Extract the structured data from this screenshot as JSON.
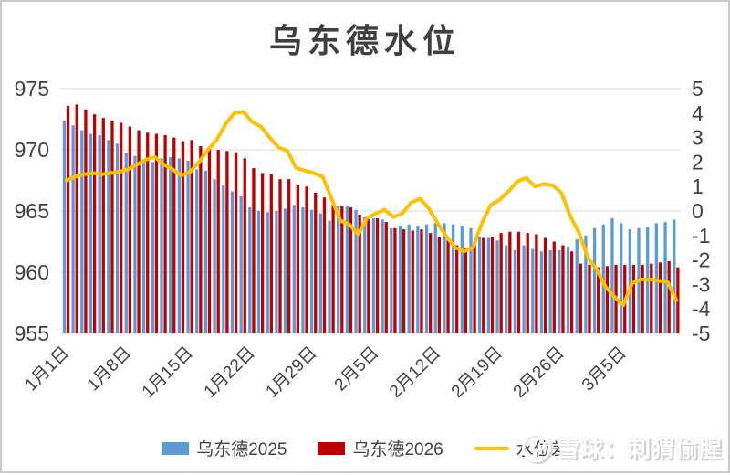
{
  "title": "乌东德水位",
  "legend": [
    {
      "label": "乌东德2025",
      "color": "#5B9BD5",
      "type": "bar"
    },
    {
      "label": "乌东德2026",
      "color": "#C00000",
      "type": "bar"
    },
    {
      "label": "水位差",
      "color": "#FFC000",
      "type": "line"
    }
  ],
  "watermark": {
    "text": "雪球：刺猬偷腥"
  },
  "colors": {
    "bar2025": "#5B9BD5",
    "bar2026": "#C00000",
    "diff_line": "#FFC000",
    "grid": "#D9D9D9",
    "axis_text": "#404040"
  },
  "chart_data": {
    "type": "bar",
    "title": "乌东德水位",
    "grid": "horizontal",
    "legend_position": "bottom",
    "left_axis": {
      "min": 955,
      "max": 975,
      "ticks": [
        975,
        970,
        965,
        960,
        955
      ]
    },
    "right_axis": {
      "min": -5,
      "max": 5,
      "ticks": [
        5,
        4,
        3,
        2,
        1,
        0,
        -1,
        -2,
        -3,
        -4,
        -5
      ]
    },
    "x_tick_interval_days": 7,
    "x_tick_labels": [
      "1月1日",
      "1月8日",
      "1月15日",
      "1月22日",
      "1月29日",
      "2月5日",
      "2月12日",
      "2月19日",
      "2月26日",
      "3月5日"
    ],
    "categories": [
      "1月1日",
      "1月2日",
      "1月3日",
      "1月4日",
      "1月5日",
      "1月6日",
      "1月7日",
      "1月8日",
      "1月9日",
      "1月10日",
      "1月11日",
      "1月12日",
      "1月13日",
      "1月14日",
      "1月15日",
      "1月16日",
      "1月17日",
      "1月18日",
      "1月19日",
      "1月20日",
      "1月21日",
      "1月22日",
      "1月23日",
      "1月24日",
      "1月25日",
      "1月26日",
      "1月27日",
      "1月28日",
      "1月29日",
      "1月30日",
      "1月31日",
      "2月1日",
      "2月2日",
      "2月3日",
      "2月4日",
      "2月5日",
      "2月6日",
      "2月7日",
      "2月8日",
      "2月9日",
      "2月10日",
      "2月11日",
      "2月12日",
      "2月13日",
      "2月14日",
      "2月15日",
      "2月16日",
      "2月17日",
      "2月18日",
      "2月19日",
      "2月20日",
      "2月21日",
      "2月22日",
      "2月23日",
      "2月24日",
      "2月25日",
      "2月26日",
      "2月27日",
      "2月28日",
      "3月1日",
      "3月2日",
      "3月3日",
      "3月4日",
      "3月5日",
      "3月6日",
      "3月7日",
      "3月8日",
      "3月9日",
      "3月10日",
      "3月11日"
    ],
    "series": [
      {
        "name": "乌东德2025",
        "type": "bar",
        "axis": "left",
        "color": "#5B9BD5",
        "values": [
          972.4,
          972.0,
          971.6,
          971.3,
          971.2,
          970.8,
          970.5,
          969.7,
          969.5,
          969.2,
          969.0,
          969.3,
          969.4,
          969.3,
          969.1,
          968.4,
          968.3,
          967.6,
          967.1,
          966.6,
          966.2,
          965.3,
          965.0,
          964.9,
          965.0,
          965.2,
          965.5,
          965.3,
          965.1,
          964.8,
          964.2,
          965.4,
          965.4,
          965.1,
          964.5,
          964.4,
          964.3,
          963.6,
          963.8,
          963.9,
          963.8,
          963.9,
          964.0,
          964.0,
          963.9,
          963.8,
          963.6,
          962.9,
          962.8,
          962.6,
          962.2,
          961.8,
          962.2,
          961.9,
          961.7,
          961.8,
          961.8,
          962.1,
          962.7,
          963.0,
          963.6,
          963.9,
          964.4,
          964.0,
          963.5,
          963.6,
          963.7,
          964.0,
          964.1,
          964.3
        ]
      },
      {
        "name": "乌东德2026",
        "type": "bar",
        "axis": "left",
        "color": "#C00000",
        "values": [
          973.6,
          973.7,
          973.3,
          972.9,
          972.6,
          972.4,
          972.2,
          971.9,
          971.6,
          971.4,
          971.3,
          971.2,
          971.0,
          970.7,
          970.8,
          970.3,
          970.1,
          970.0,
          969.9,
          969.8,
          969.3,
          968.5,
          968.1,
          968.0,
          967.6,
          967.6,
          967.1,
          967.0,
          966.5,
          966.1,
          965.5,
          965.4,
          965.3,
          964.7,
          964.6,
          964.4,
          964.1,
          963.6,
          963.5,
          963.4,
          963.5,
          963.2,
          962.9,
          962.6,
          962.2,
          962.0,
          962.5,
          962.8,
          962.9,
          963.2,
          963.3,
          963.3,
          963.2,
          963.1,
          962.8,
          962.5,
          962.2,
          961.7,
          960.7,
          960.6,
          960.4,
          960.5,
          960.6,
          960.6,
          960.6,
          960.6,
          960.7,
          960.8,
          960.9,
          960.4
        ]
      },
      {
        "name": "水位差",
        "type": "line",
        "axis": "right",
        "color": "#FFC000",
        "values": [
          1.25,
          1.4,
          1.5,
          1.55,
          1.5,
          1.55,
          1.6,
          1.7,
          1.9,
          2.1,
          2.2,
          1.9,
          1.7,
          1.45,
          1.6,
          2.0,
          2.5,
          2.9,
          3.55,
          4.0,
          4.05,
          3.65,
          3.45,
          3.0,
          2.6,
          2.45,
          1.75,
          1.65,
          1.55,
          1.4,
          0.5,
          -0.4,
          -0.55,
          -0.95,
          -0.3,
          -0.1,
          0.05,
          -0.25,
          -0.1,
          0.35,
          0.5,
          0.1,
          -0.5,
          -1.05,
          -1.5,
          -1.65,
          -1.5,
          -0.5,
          0.25,
          0.45,
          0.8,
          1.2,
          1.35,
          1.0,
          1.1,
          1.05,
          0.75,
          -0.2,
          -0.9,
          -1.9,
          -2.4,
          -3.1,
          -3.5,
          -3.85,
          -2.95,
          -2.8,
          -2.8,
          -2.85,
          -2.9,
          -3.65
        ]
      }
    ]
  }
}
